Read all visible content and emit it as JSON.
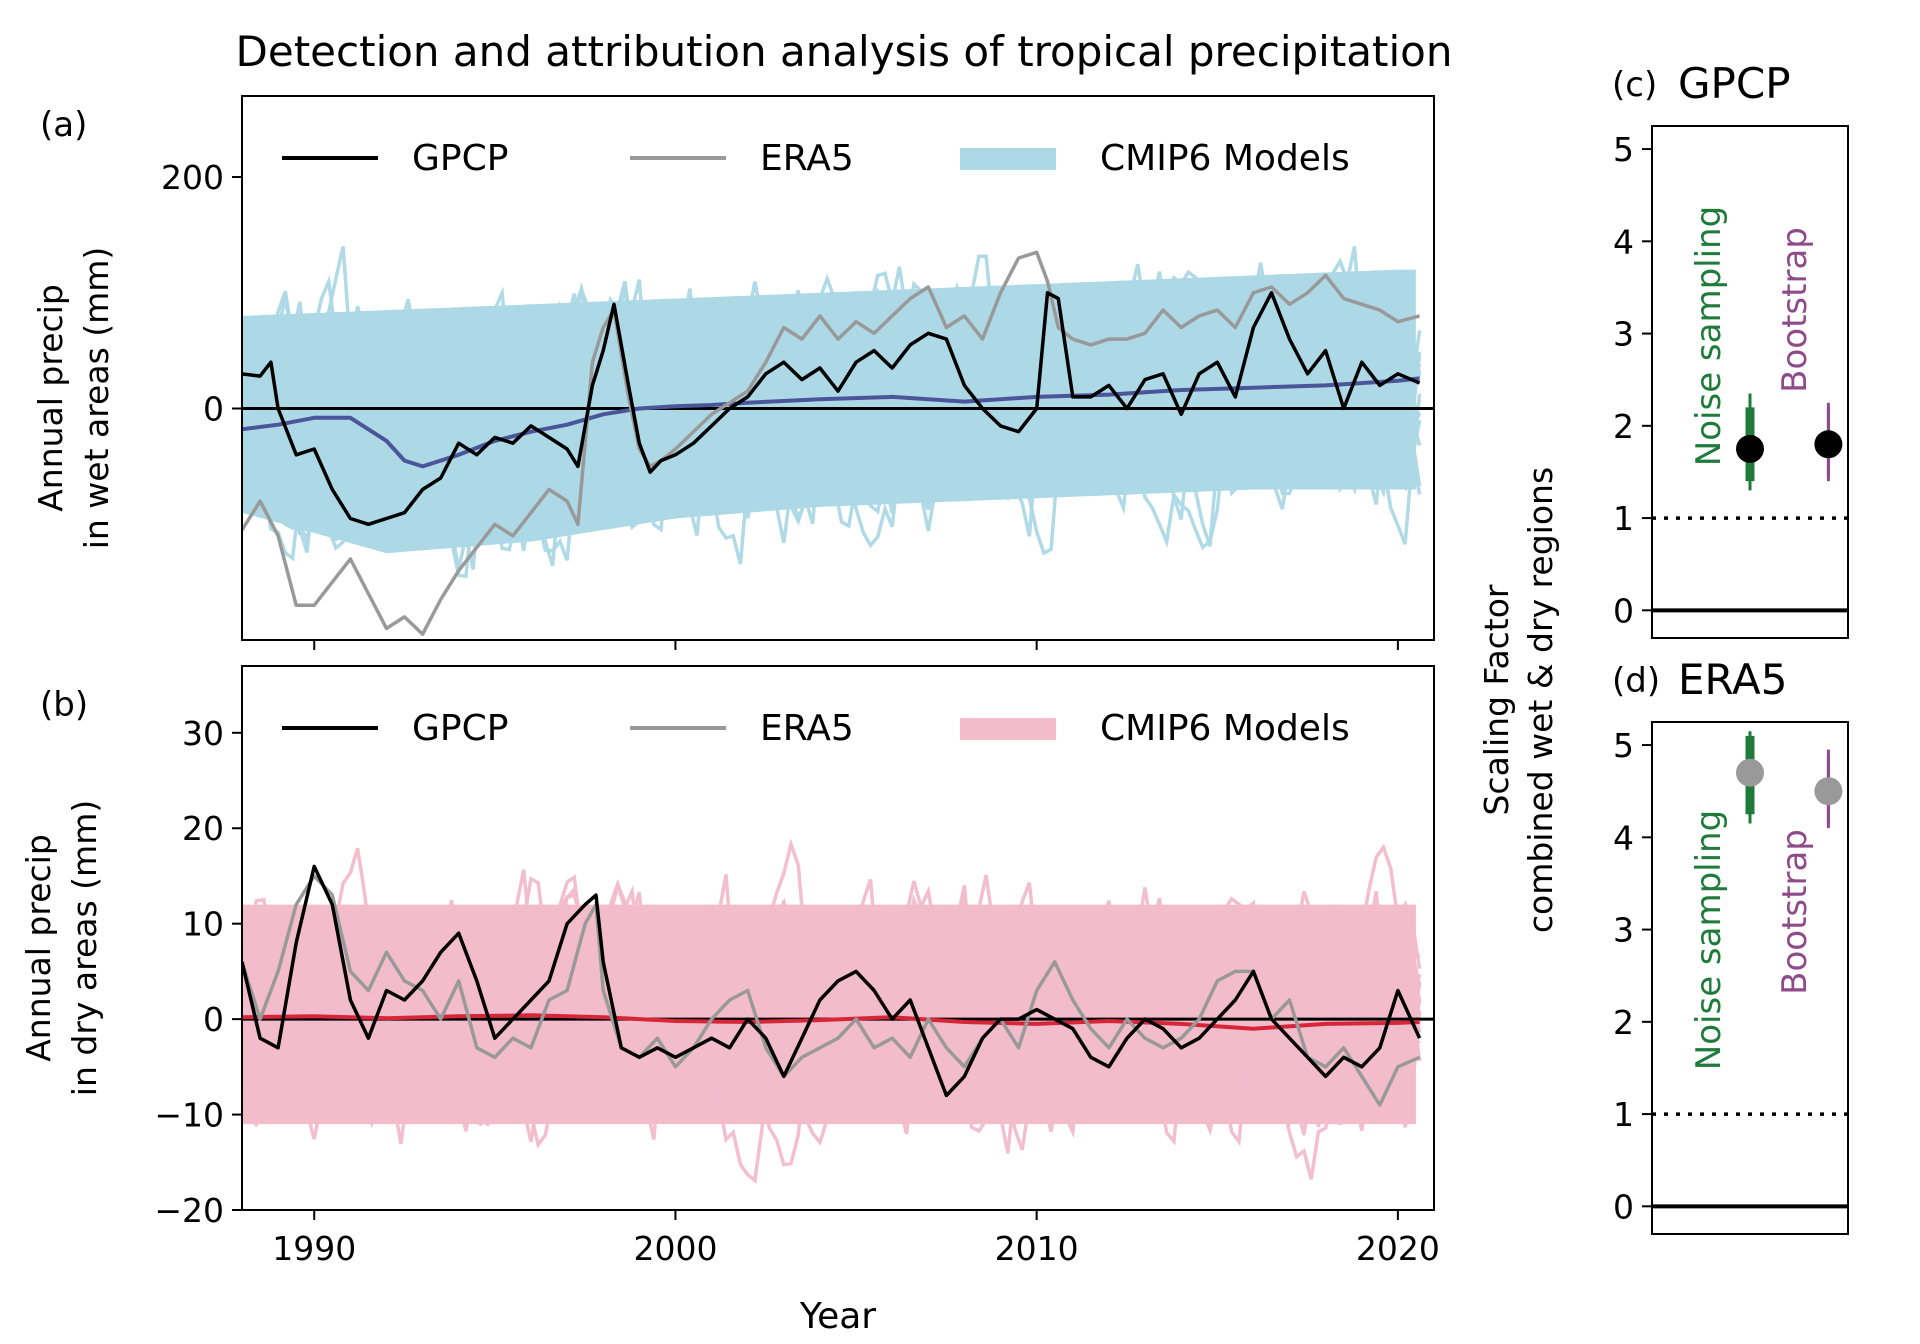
{
  "figure_title": "Detection and attribution analysis of tropical precipitation",
  "colors": {
    "gpcp": "#000000",
    "era5": "#999999",
    "cmip_wet": "#add8e6",
    "cmip_dry": "#f2bccb",
    "mmm_wet": "#4b559a",
    "mmm_dry": "#d62638",
    "noise": "#1e7b3a",
    "bootstrap": "#8e4a8a"
  },
  "chart_data": [
    {
      "id": "a",
      "panel_label": "(a)",
      "type": "line",
      "title": "",
      "xlabel": "",
      "ylabel_line1": "Annual precip",
      "ylabel_line2": "in wet areas (mm)",
      "xlim": [
        1988,
        2021
      ],
      "ylim": [
        -200,
        270
      ],
      "yticks": [
        0,
        200
      ],
      "ytick_labels": [
        "0",
        "200"
      ],
      "xticks": [
        1990,
        2000,
        2010,
        2020
      ],
      "hline": 0,
      "legend": [
        "GPCP",
        "ERA5",
        "CMIP6 Models"
      ],
      "legend_position": "top",
      "band": {
        "name": "CMIP6 Models",
        "x": [
          1988,
          1992,
          1996,
          2000,
          2004,
          2008,
          2012,
          2016,
          2020,
          2020.7
        ],
        "upper": [
          80,
          85,
          90,
          95,
          100,
          105,
          110,
          115,
          120,
          120
        ],
        "lower": [
          -90,
          -125,
          -115,
          -95,
          -85,
          -80,
          -75,
          -70,
          -70,
          -70
        ]
      },
      "spaghetti": {
        "name": "CMIP6 members",
        "amplitude": 55,
        "peak": 140,
        "trough": -145
      },
      "series": [
        {
          "name": "CMIP6 Multi-model mean",
          "x": [
            1988,
            1989,
            1990,
            1991,
            1992,
            1992.5,
            1993,
            1994,
            1995,
            1996,
            1997,
            1998,
            1999,
            2000,
            2001,
            2002,
            2004,
            2006,
            2008,
            2010,
            2012,
            2014,
            2016,
            2018,
            2020,
            2020.6
          ],
          "values": [
            -18,
            -14,
            -8,
            -8,
            -28,
            -45,
            -50,
            -40,
            -28,
            -20,
            -14,
            -5,
            0,
            2,
            3,
            5,
            8,
            10,
            6,
            10,
            12,
            16,
            18,
            20,
            24,
            26
          ]
        },
        {
          "name": "ERA5",
          "x": [
            1988,
            1988.5,
            1989,
            1989.5,
            1990,
            1990.5,
            1991,
            1991.5,
            1992,
            1992.5,
            1993,
            1993.5,
            1994,
            1994.5,
            1995,
            1995.5,
            1996,
            1996.5,
            1997,
            1997.3,
            1997.7,
            1998,
            1998.3,
            1998.7,
            1999,
            1999.3,
            1999.6,
            2000,
            2000.5,
            2001,
            2001.5,
            2002,
            2002.5,
            2003,
            2003.5,
            2004,
            2004.5,
            2005,
            2005.5,
            2006,
            2006.5,
            2007,
            2007.5,
            2008,
            2008.5,
            2009,
            2009.5,
            2010,
            2010.3,
            2010.6,
            2011,
            2011.5,
            2012,
            2012.5,
            2013,
            2013.5,
            2014,
            2014.5,
            2015,
            2015.5,
            2016,
            2016.5,
            2017,
            2017.5,
            2018,
            2018.5,
            2019,
            2019.5,
            2020,
            2020.6
          ],
          "values": [
            -105,
            -80,
            -110,
            -170,
            -170,
            -150,
            -130,
            -160,
            -190,
            -180,
            -195,
            -165,
            -140,
            -120,
            -100,
            -110,
            -90,
            -70,
            -80,
            -100,
            40,
            70,
            85,
            10,
            -35,
            -50,
            -45,
            -35,
            -20,
            -5,
            5,
            15,
            40,
            70,
            60,
            80,
            60,
            75,
            65,
            80,
            95,
            105,
            70,
            80,
            60,
            100,
            130,
            135,
            110,
            70,
            60,
            55,
            60,
            60,
            65,
            85,
            70,
            80,
            85,
            70,
            100,
            105,
            90,
            100,
            115,
            95,
            90,
            85,
            75,
            80
          ]
        },
        {
          "name": "GPCP",
          "x": [
            1988,
            1988.5,
            1988.8,
            1989,
            1989.5,
            1990,
            1990.5,
            1991,
            1991.5,
            1992,
            1992.5,
            1993,
            1993.5,
            1994,
            1994.5,
            1995,
            1995.5,
            1996,
            1996.5,
            1997,
            1997.3,
            1997.7,
            1998,
            1998.3,
            1998.7,
            1999,
            1999.3,
            1999.6,
            2000,
            2000.5,
            2001,
            2001.5,
            2002,
            2002.5,
            2003,
            2003.5,
            2004,
            2004.5,
            2005,
            2005.5,
            2006,
            2006.5,
            2007,
            2007.5,
            2008,
            2008.5,
            2009,
            2009.5,
            2010,
            2010.3,
            2010.6,
            2011,
            2011.5,
            2012,
            2012.5,
            2013,
            2013.5,
            2014,
            2014.5,
            2015,
            2015.5,
            2016,
            2016.5,
            2017,
            2017.5,
            2018,
            2018.5,
            2019,
            2019.5,
            2020,
            2020.6
          ],
          "values": [
            30,
            28,
            40,
            0,
            -40,
            -35,
            -70,
            -95,
            -100,
            -95,
            -90,
            -70,
            -60,
            -30,
            -40,
            -25,
            -30,
            -15,
            -25,
            -35,
            -50,
            20,
            50,
            90,
            20,
            -30,
            -55,
            -45,
            -40,
            -30,
            -15,
            0,
            10,
            30,
            40,
            25,
            35,
            15,
            40,
            50,
            35,
            55,
            65,
            60,
            20,
            0,
            -15,
            -20,
            0,
            100,
            95,
            10,
            10,
            20,
            0,
            25,
            30,
            -5,
            30,
            40,
            10,
            70,
            100,
            60,
            30,
            50,
            0,
            40,
            20,
            30,
            22
          ]
        }
      ]
    },
    {
      "id": "b",
      "panel_label": "(b)",
      "type": "line",
      "title": "",
      "xlabel": "Year",
      "ylabel_line1": "Annual precip",
      "ylabel_line2": "in dry areas (mm)",
      "xlim": [
        1988,
        2021
      ],
      "ylim": [
        -20,
        37
      ],
      "yticks": [
        -20,
        -10,
        0,
        10,
        20,
        30
      ],
      "ytick_labels": [
        "−20",
        "−10",
        "0",
        "10",
        "20",
        "30"
      ],
      "xticks": [
        1990,
        2000,
        2010,
        2020
      ],
      "xtick_labels": [
        "1990",
        "2000",
        "2010",
        "2020"
      ],
      "hline": 0,
      "legend": [
        "GPCP",
        "ERA5",
        "CMIP6 Models"
      ],
      "legend_position": "top",
      "band": {
        "name": "CMIP6 Models",
        "x": [
          1988,
          2020.7
        ],
        "upper": [
          12,
          12
        ],
        "lower": [
          -11,
          -11
        ]
      },
      "spaghetti": {
        "name": "CMIP6 members",
        "amplitude": 6,
        "peak": 24,
        "trough": -18
      },
      "series": [
        {
          "name": "CMIP6 Multi-model mean",
          "x": [
            1988,
            1990,
            1992,
            1994,
            1996,
            1998,
            2000,
            2002,
            2004,
            2006,
            2008,
            2010,
            2012,
            2014,
            2016,
            2018,
            2020,
            2020.6
          ],
          "values": [
            0.2,
            0.3,
            0.1,
            0.3,
            0.4,
            0.2,
            -0.2,
            -0.3,
            -0.1,
            0.2,
            -0.3,
            -0.5,
            -0.2,
            -0.5,
            -1,
            -0.5,
            -0.4,
            -0.3
          ]
        },
        {
          "name": "ERA5",
          "x": [
            1988,
            1988.5,
            1989,
            1989.5,
            1990,
            1990.5,
            1991,
            1991.5,
            1992,
            1992.5,
            1993,
            1993.5,
            1994,
            1994.5,
            1995,
            1995.5,
            1996,
            1996.5,
            1997,
            1997.5,
            1997.8,
            1998,
            1998.5,
            1999,
            1999.5,
            2000,
            2000.5,
            2001,
            2001.5,
            2002,
            2002.5,
            2003,
            2003.5,
            2004,
            2004.5,
            2005,
            2005.5,
            2006,
            2006.5,
            2007,
            2007.5,
            2008,
            2008.5,
            2009,
            2009.5,
            2010,
            2010.5,
            2011,
            2011.5,
            2012,
            2012.5,
            2013,
            2013.5,
            2014,
            2014.5,
            2015,
            2015.5,
            2016,
            2016.5,
            2017,
            2017.5,
            2018,
            2018.5,
            2019,
            2019.5,
            2020,
            2020.6
          ],
          "values": [
            6,
            0,
            5,
            12,
            15,
            13,
            5,
            3,
            7,
            4,
            3,
            0,
            4,
            -3,
            -4,
            -2,
            -3,
            2,
            3,
            10,
            12,
            3,
            -3,
            -4,
            -2,
            -5,
            -3,
            0,
            2,
            3,
            -3,
            -6,
            -4,
            -3,
            -2,
            0,
            -3,
            -2,
            -4,
            0,
            -3,
            -5,
            -2,
            0,
            -3,
            3,
            6,
            2,
            -1,
            -3,
            0,
            -2,
            -3,
            -2,
            0,
            4,
            5,
            5,
            0,
            2,
            -4,
            -5,
            -3,
            -6,
            -9,
            -5,
            -4
          ]
        },
        {
          "name": "GPCP",
          "x": [
            1988,
            1988.5,
            1989,
            1989.5,
            1990,
            1990.5,
            1991,
            1991.5,
            1992,
            1992.5,
            1993,
            1993.5,
            1994,
            1994.5,
            1995,
            1995.5,
            1996,
            1996.5,
            1997,
            1997.5,
            1997.8,
            1998,
            1998.5,
            1999,
            1999.5,
            2000,
            2000.5,
            2001,
            2001.5,
            2002,
            2002.5,
            2003,
            2003.5,
            2004,
            2004.5,
            2005,
            2005.5,
            2006,
            2006.5,
            2007,
            2007.5,
            2008,
            2008.5,
            2009,
            2009.5,
            2010,
            2010.5,
            2011,
            2011.5,
            2012,
            2012.5,
            2013,
            2013.5,
            2014,
            2014.5,
            2015,
            2015.5,
            2016,
            2016.5,
            2017,
            2017.5,
            2018,
            2018.5,
            2019,
            2019.5,
            2020,
            2020.6
          ],
          "values": [
            6,
            -2,
            -3,
            8,
            16,
            12,
            2,
            -2,
            3,
            2,
            4,
            7,
            9,
            4,
            -2,
            0,
            2,
            4,
            10,
            12,
            13,
            6,
            -3,
            -4,
            -3,
            -4,
            -3,
            -2,
            -3,
            0,
            -2,
            -6,
            -2,
            2,
            4,
            5,
            3,
            0,
            2,
            -3,
            -8,
            -6,
            -2,
            0,
            0,
            1,
            0,
            -1,
            -4,
            -5,
            -2,
            0,
            -1,
            -3,
            -2,
            0,
            2,
            5,
            0,
            -2,
            -4,
            -6,
            -4,
            -5,
            -3,
            3,
            -2
          ]
        }
      ]
    },
    {
      "id": "c",
      "panel_label": "(c)",
      "title": "GPCP",
      "type": "scatter",
      "ylim": [
        -0.3,
        5.25
      ],
      "yticks": [
        0,
        1,
        2,
        3,
        4,
        5
      ],
      "ytick_labels": [
        "0",
        "1",
        "2",
        "3",
        "4",
        "5"
      ],
      "hline_solid": 0,
      "hline_dotted": 1,
      "points": [
        {
          "name": "Noise sampling",
          "x": 1,
          "value": 1.75,
          "thick_range": [
            1.4,
            2.2
          ],
          "thin_range": [
            1.3,
            2.35
          ],
          "marker": "#000000",
          "bar_color": "#1e7b3a"
        },
        {
          "name": "Bootstrap",
          "x": 2,
          "value": 1.8,
          "thick_range": [
            1.45,
            2.2
          ],
          "thin_range": [
            1.4,
            2.25
          ],
          "marker": "#000000",
          "bar_color": "#8e4a8a"
        }
      ]
    },
    {
      "id": "d",
      "panel_label": "(d)",
      "title": "ERA5",
      "type": "scatter",
      "ylim": [
        -0.3,
        5.25
      ],
      "yticks": [
        0,
        1,
        2,
        3,
        4,
        5
      ],
      "ytick_labels": [
        "0",
        "1",
        "2",
        "3",
        "4",
        "5"
      ],
      "hline_solid": 0,
      "hline_dotted": 1,
      "points": [
        {
          "name": "Noise sampling",
          "x": 1,
          "value": 4.7,
          "thick_range": [
            4.25,
            5.1
          ],
          "thin_range": [
            4.15,
            5.15
          ],
          "marker": "#999999",
          "bar_color": "#1e7b3a"
        },
        {
          "name": "Bootstrap",
          "x": 2,
          "value": 4.5,
          "thick_range": [
            4.15,
            4.9
          ],
          "thin_range": [
            4.1,
            4.95
          ],
          "marker": "#999999",
          "bar_color": "#8e4a8a"
        }
      ]
    }
  ],
  "shared_ylabel_line1": "Scaling Factor",
  "shared_ylabel_line2": "combined wet & dry regions"
}
